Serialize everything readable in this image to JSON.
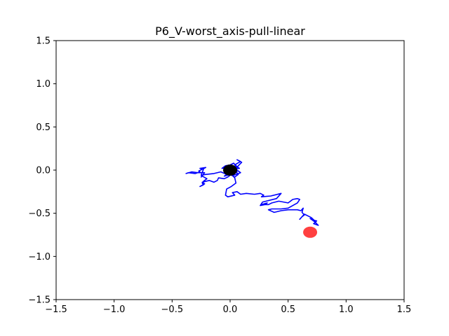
{
  "chart_data": {
    "type": "line",
    "title": "P6_V-worst_axis-pull-linear",
    "xlabel": "",
    "ylabel": "",
    "xlim": [
      -1.5,
      1.5
    ],
    "ylim": [
      -1.5,
      1.5
    ],
    "xticks": [
      -1.5,
      -1.0,
      -0.5,
      0.0,
      0.5,
      1.0,
      1.5
    ],
    "yticks": [
      -1.5,
      -1.0,
      -0.5,
      0.0,
      0.5,
      1.0,
      1.5
    ],
    "xtick_labels": [
      "−1.5",
      "−1.0",
      "−0.5",
      "0.0",
      "0.5",
      "1.0",
      "1.5"
    ],
    "ytick_labels": [
      "−1.5",
      "−1.0",
      "−0.5",
      "0.0",
      "0.5",
      "1.0",
      "1.5"
    ],
    "grid": false,
    "legend": "none",
    "series": [
      {
        "color": "#0000ff",
        "x": [
          0.0,
          0.04,
          0.02,
          0.06,
          0.04,
          0.09,
          0.06,
          0.1,
          0.07,
          0.05,
          0.09,
          0.03,
          0.0,
          -0.03,
          -0.01,
          -0.05,
          -0.02,
          -0.07,
          -0.04,
          0.0,
          0.03,
          0.06,
          0.08,
          0.02,
          -0.02,
          -0.05,
          0.0,
          0.04,
          0.07,
          0.05,
          0.01,
          -0.02,
          0.02,
          0.06,
          0.03,
          -0.03,
          -0.08,
          -0.14,
          -0.21,
          -0.25,
          -0.23,
          -0.26,
          -0.21,
          -0.27,
          -0.26,
          -0.3,
          -0.36,
          -0.38,
          -0.33,
          -0.28,
          -0.22,
          -0.25,
          -0.24,
          -0.2,
          -0.23,
          -0.24,
          -0.23,
          -0.26,
          -0.22,
          -0.24,
          -0.18,
          -0.14,
          -0.11,
          -0.1,
          -0.05,
          -0.02,
          0.01,
          0.04,
          0.05,
          0.01,
          -0.03,
          -0.04,
          -0.02,
          0.04,
          0.02,
          0.06,
          0.09,
          0.14,
          0.21,
          0.26,
          0.29,
          0.27,
          0.35,
          0.44,
          0.4,
          0.28,
          0.26,
          0.3,
          0.32,
          0.27,
          0.33,
          0.36,
          0.42,
          0.5,
          0.54,
          0.58,
          0.6,
          0.58,
          0.5,
          0.44,
          0.36,
          0.33,
          0.38,
          0.44,
          0.5,
          0.58,
          0.61,
          0.63,
          0.62,
          0.64,
          0.62,
          0.6,
          0.64,
          0.7,
          0.74,
          0.72,
          0.76,
          0.73,
          0.69,
          0.72,
          0.75
        ],
        "y": [
          0.0,
          0.02,
          -0.01,
          0.03,
          0.06,
          0.1,
          0.12,
          0.09,
          0.05,
          0.01,
          -0.03,
          -0.06,
          -0.04,
          -0.06,
          -0.02,
          0.0,
          0.03,
          0.02,
          0.05,
          0.06,
          0.08,
          0.04,
          0.02,
          0.01,
          -0.04,
          -0.07,
          -0.05,
          -0.08,
          -0.05,
          -0.02,
          -0.03,
          0.0,
          0.01,
          -0.02,
          -0.04,
          -0.05,
          -0.02,
          -0.04,
          -0.05,
          -0.06,
          0.01,
          0.02,
          0.03,
          -0.01,
          -0.02,
          -0.04,
          -0.03,
          -0.04,
          -0.02,
          -0.03,
          -0.03,
          -0.08,
          -0.07,
          -0.1,
          -0.13,
          -0.15,
          -0.17,
          -0.19,
          -0.16,
          -0.14,
          -0.12,
          -0.14,
          -0.12,
          -0.09,
          -0.1,
          -0.08,
          -0.05,
          -0.09,
          -0.15,
          -0.19,
          -0.22,
          -0.29,
          -0.31,
          -0.29,
          -0.26,
          -0.25,
          -0.28,
          -0.27,
          -0.28,
          -0.27,
          -0.29,
          -0.31,
          -0.3,
          -0.27,
          -0.33,
          -0.37,
          -0.41,
          -0.4,
          -0.38,
          -0.4,
          -0.4,
          -0.38,
          -0.36,
          -0.38,
          -0.34,
          -0.33,
          -0.34,
          -0.38,
          -0.44,
          -0.45,
          -0.45,
          -0.46,
          -0.49,
          -0.47,
          -0.46,
          -0.46,
          -0.47,
          -0.44,
          -0.49,
          -0.52,
          -0.54,
          -0.57,
          -0.51,
          -0.55,
          -0.6,
          -0.62,
          -0.64,
          -0.6,
          -0.56,
          -0.58,
          -0.59
        ]
      }
    ],
    "markers": [
      {
        "x": 0.0,
        "y": 0.0,
        "color": "#000000",
        "alpha": 1.0
      },
      {
        "x": 0.69,
        "y": -0.72,
        "color": "#ff0000",
        "alpha": 0.75
      }
    ]
  }
}
